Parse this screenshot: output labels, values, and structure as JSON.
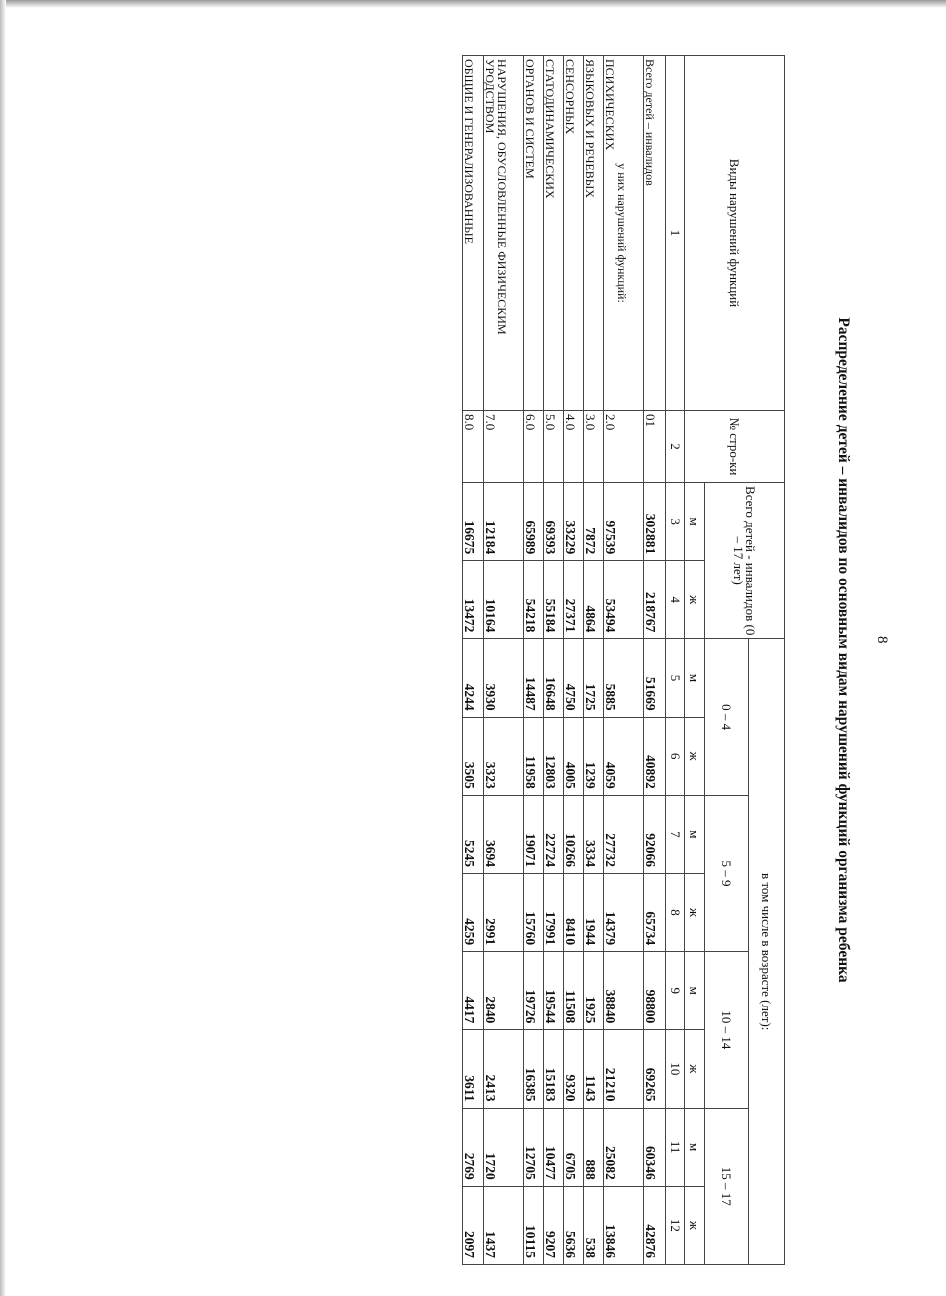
{
  "page_number": "8",
  "title": "Распределение детей – инвалидов по основным видам нарушений функций организма ребенка",
  "header": {
    "col_types": "Виды нарушений функций",
    "col_row_no": "№ стро-ки",
    "col_total": "Всего детей - инвалидов (0 – 17 лет)",
    "col_by_age": "в том числе в возрасте (лет):",
    "age_groups": [
      "0 – 4",
      "5 – 9",
      "10 – 14",
      "15 – 17"
    ],
    "male": "м",
    "female": "ж",
    "column_numbers": [
      "1",
      "2",
      "3",
      "4",
      "5",
      "6",
      "7",
      "8",
      "9",
      "10",
      "11",
      "12"
    ]
  },
  "subheader": "у них нарушений функций:",
  "rows": [
    {
      "label": "Всего детей – инвалидов",
      "code": "01",
      "values": [
        "302881",
        "218767",
        "51669",
        "40892",
        "92066",
        "65734",
        "98800",
        "69265",
        "60346",
        "42876"
      ]
    },
    {
      "label": "ПСИХИЧЕСКИХ",
      "code": "2.0",
      "values": [
        "97539",
        "53494",
        "5885",
        "4059",
        "27732",
        "14379",
        "38840",
        "21210",
        "25082",
        "13846"
      ]
    },
    {
      "label": "ЯЗЫКОВЫХ И РЕЧЕВЫХ",
      "code": "3.0",
      "values": [
        "7872",
        "4864",
        "1725",
        "1239",
        "3334",
        "1944",
        "1925",
        "1143",
        "888",
        "538"
      ]
    },
    {
      "label": "СЕНСОРНЫХ",
      "code": "4.0",
      "values": [
        "33229",
        "27371",
        "4750",
        "4005",
        "10266",
        "8410",
        "11508",
        "9320",
        "6705",
        "5636"
      ]
    },
    {
      "label": "СТАТОДИНАМИЧЕСКИХ",
      "code": "5.0",
      "values": [
        "69393",
        "55184",
        "16648",
        "12803",
        "22724",
        "17991",
        "19544",
        "15183",
        "10477",
        "9207"
      ]
    },
    {
      "label": "ОРГАНОВ И СИСТЕМ",
      "code": "6.0",
      "values": [
        "65989",
        "54218",
        "14487",
        "11958",
        "19071",
        "15760",
        "19726",
        "16385",
        "12705",
        "10115"
      ]
    },
    {
      "label": "НАРУШЕНИЯ, ОБУСЛОВЛЕННЫЕ ФИЗИЧЕСКИМ УРОДСТВОМ",
      "code": "7.0",
      "values": [
        "12184",
        "10164",
        "3930",
        "3323",
        "3694",
        "2991",
        "2840",
        "2413",
        "1720",
        "1437"
      ]
    },
    {
      "label": "ОБЩИЕ И ГЕНЕРАЛИЗОВАННЫЕ",
      "code": "8.0",
      "values": [
        "16675",
        "13472",
        "4244",
        "3505",
        "5245",
        "4259",
        "4417",
        "3611",
        "2769",
        "2097"
      ]
    }
  ]
}
